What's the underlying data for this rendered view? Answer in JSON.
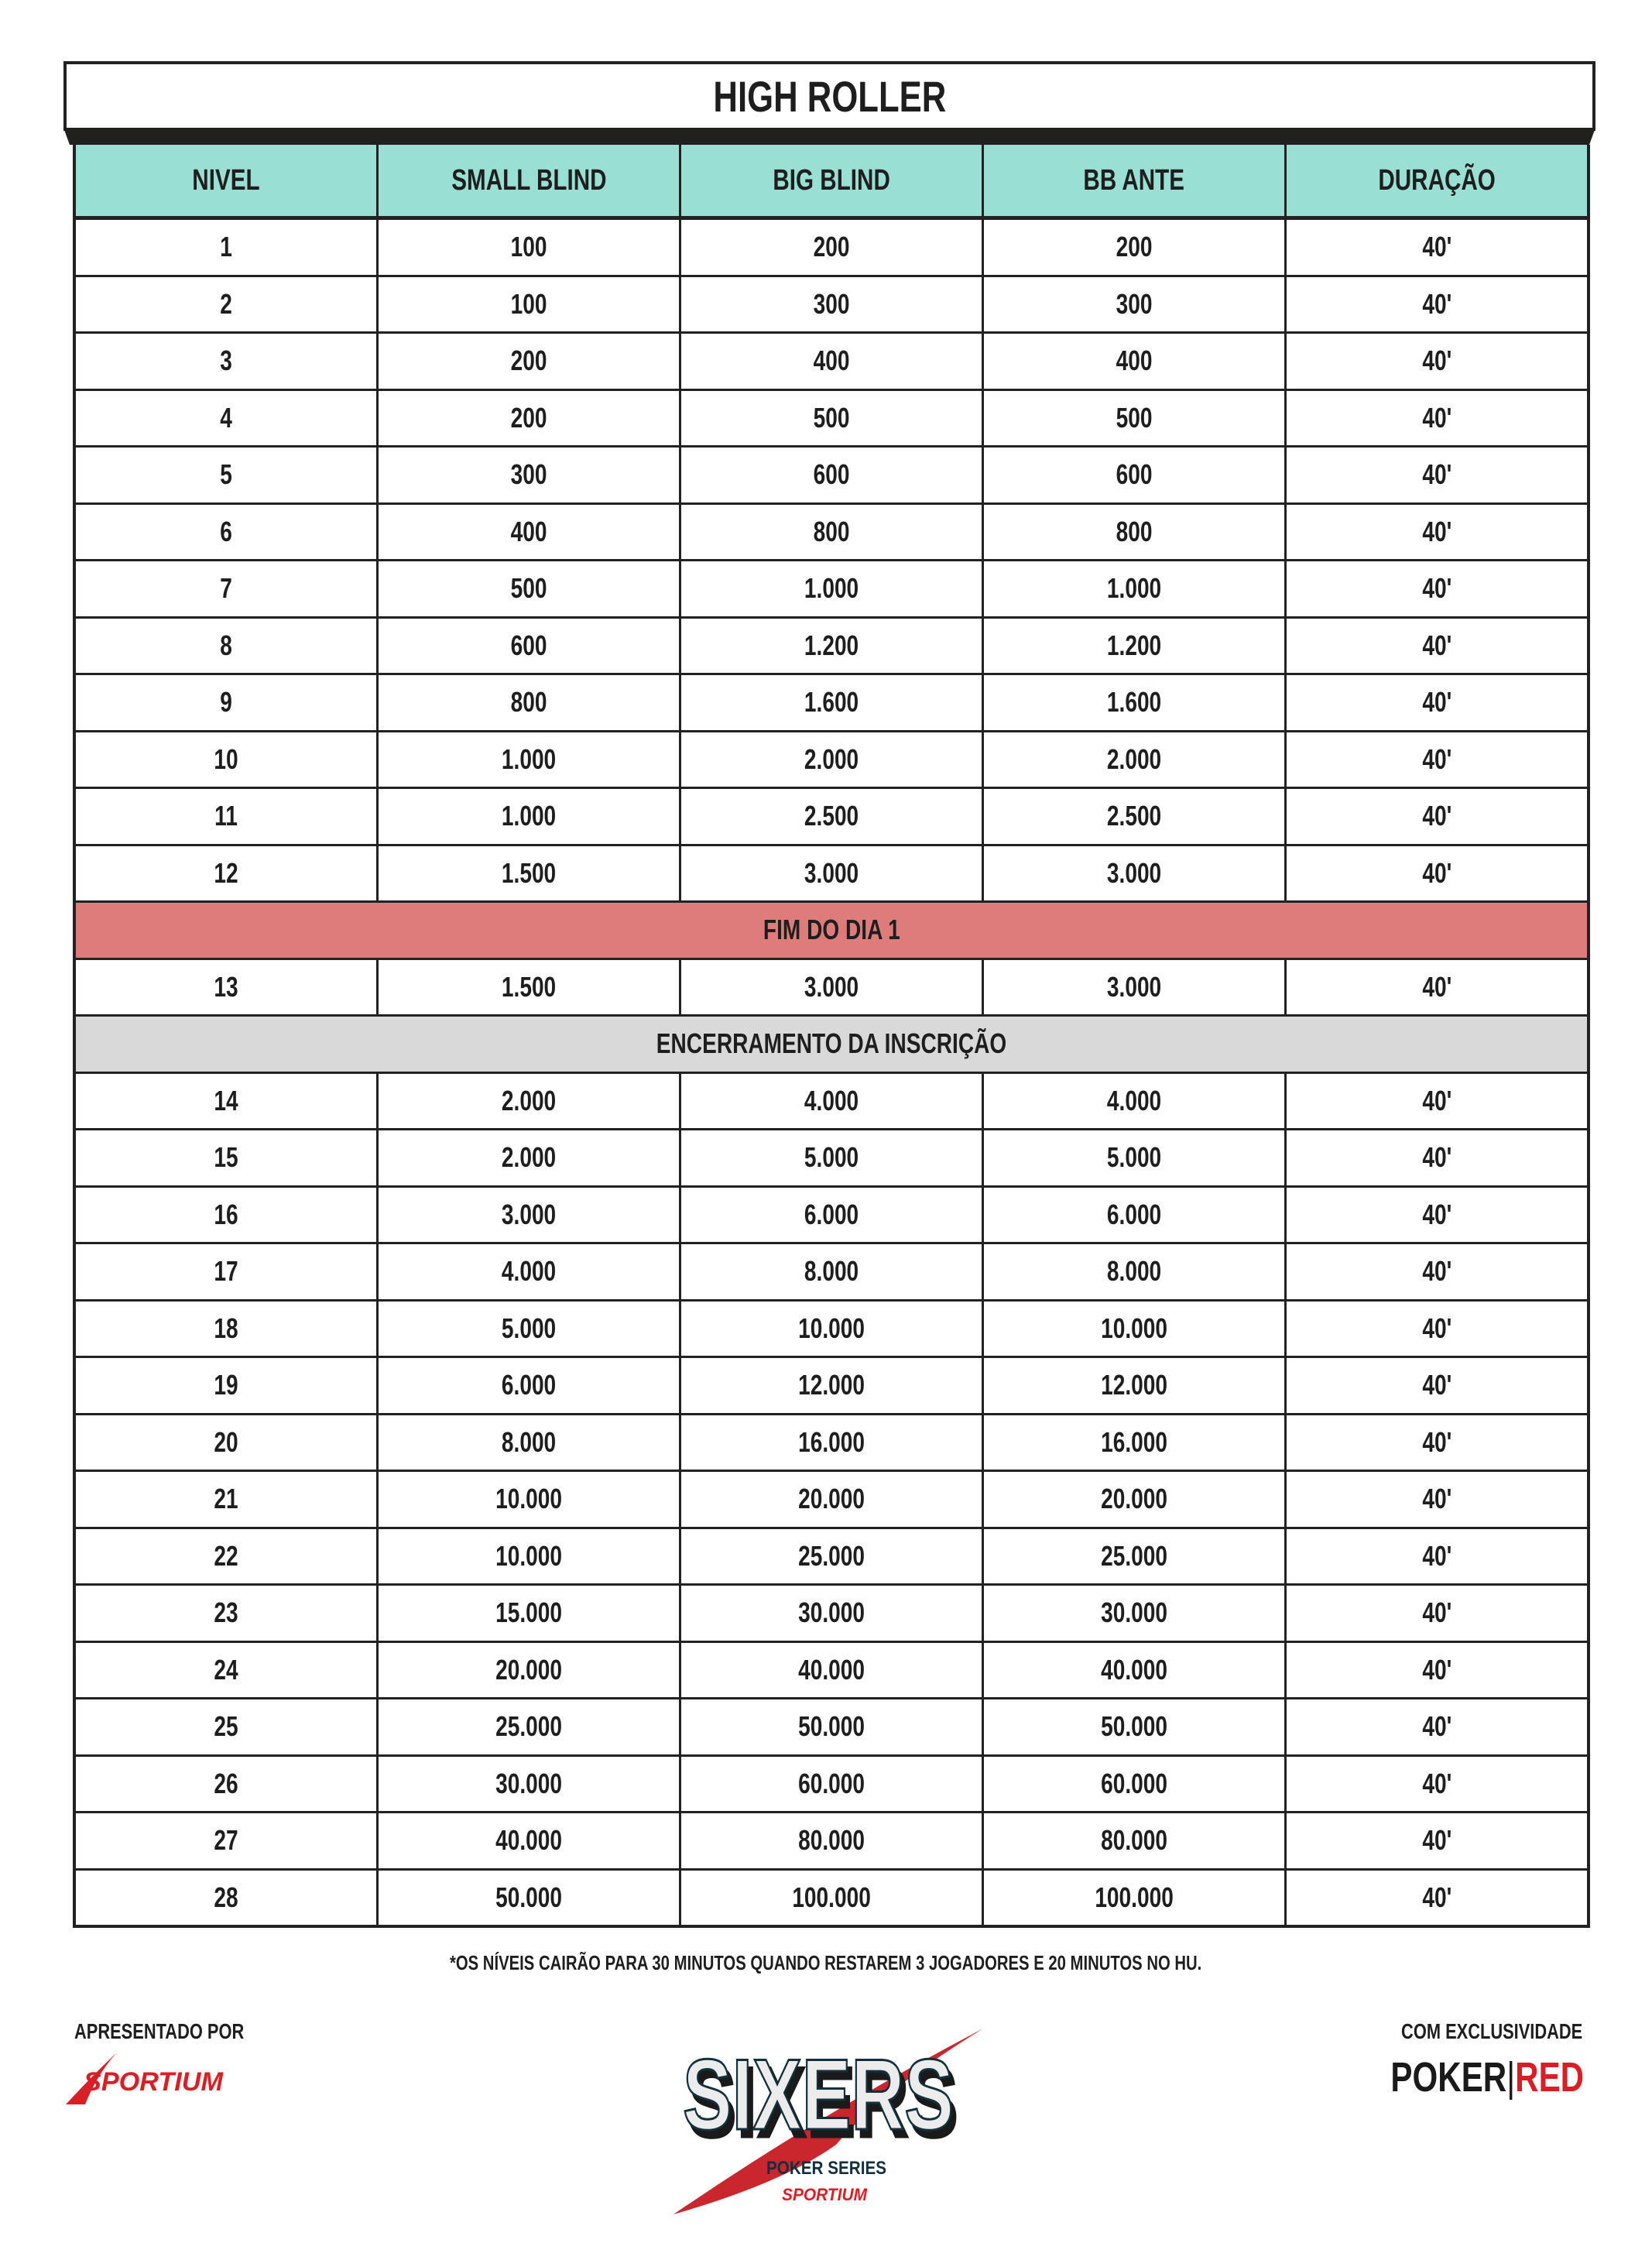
{
  "title": "HIGH ROLLER",
  "columns": [
    "NIVEL",
    "SMALL BLIND",
    "BIG BLIND",
    "BB ANTE",
    "DURAÇÃO"
  ],
  "rows": [
    {
      "type": "level",
      "cells": [
        "1",
        "100",
        "200",
        "200",
        "40'"
      ]
    },
    {
      "type": "level",
      "cells": [
        "2",
        "100",
        "300",
        "300",
        "40'"
      ]
    },
    {
      "type": "level",
      "cells": [
        "3",
        "200",
        "400",
        "400",
        "40'"
      ]
    },
    {
      "type": "level",
      "cells": [
        "4",
        "200",
        "500",
        "500",
        "40'"
      ]
    },
    {
      "type": "level",
      "cells": [
        "5",
        "300",
        "600",
        "600",
        "40'"
      ]
    },
    {
      "type": "level",
      "cells": [
        "6",
        "400",
        "800",
        "800",
        "40'"
      ]
    },
    {
      "type": "level",
      "cells": [
        "7",
        "500",
        "1.000",
        "1.000",
        "40'"
      ]
    },
    {
      "type": "level",
      "cells": [
        "8",
        "600",
        "1.200",
        "1.200",
        "40'"
      ]
    },
    {
      "type": "level",
      "cells": [
        "9",
        "800",
        "1.600",
        "1.600",
        "40'"
      ]
    },
    {
      "type": "level",
      "cells": [
        "10",
        "1.000",
        "2.000",
        "2.000",
        "40'"
      ]
    },
    {
      "type": "level",
      "cells": [
        "11",
        "1.000",
        "2.500",
        "2.500",
        "40'"
      ]
    },
    {
      "type": "level",
      "cells": [
        "12",
        "1.500",
        "3.000",
        "3.000",
        "40'"
      ]
    },
    {
      "type": "band",
      "style": "red",
      "label": "FIM DO DIA 1"
    },
    {
      "type": "level",
      "cells": [
        "13",
        "1.500",
        "3.000",
        "3.000",
        "40'"
      ]
    },
    {
      "type": "band",
      "style": "gray",
      "label": "ENCERRAMENTO DA INSCRIÇÃO"
    },
    {
      "type": "level",
      "cells": [
        "14",
        "2.000",
        "4.000",
        "4.000",
        "40'"
      ]
    },
    {
      "type": "level",
      "cells": [
        "15",
        "2.000",
        "5.000",
        "5.000",
        "40'"
      ]
    },
    {
      "type": "level",
      "cells": [
        "16",
        "3.000",
        "6.000",
        "6.000",
        "40'"
      ]
    },
    {
      "type": "level",
      "cells": [
        "17",
        "4.000",
        "8.000",
        "8.000",
        "40'"
      ]
    },
    {
      "type": "level",
      "cells": [
        "18",
        "5.000",
        "10.000",
        "10.000",
        "40'"
      ]
    },
    {
      "type": "level",
      "cells": [
        "19",
        "6.000",
        "12.000",
        "12.000",
        "40'"
      ]
    },
    {
      "type": "level",
      "cells": [
        "20",
        "8.000",
        "16.000",
        "16.000",
        "40'"
      ]
    },
    {
      "type": "level",
      "cells": [
        "21",
        "10.000",
        "20.000",
        "20.000",
        "40'"
      ]
    },
    {
      "type": "level",
      "cells": [
        "22",
        "10.000",
        "25.000",
        "25.000",
        "40'"
      ]
    },
    {
      "type": "level",
      "cells": [
        "23",
        "15.000",
        "30.000",
        "30.000",
        "40'"
      ]
    },
    {
      "type": "level",
      "cells": [
        "24",
        "20.000",
        "40.000",
        "40.000",
        "40'"
      ]
    },
    {
      "type": "level",
      "cells": [
        "25",
        "25.000",
        "50.000",
        "50.000",
        "40'"
      ]
    },
    {
      "type": "level",
      "cells": [
        "26",
        "30.000",
        "60.000",
        "60.000",
        "40'"
      ]
    },
    {
      "type": "level",
      "cells": [
        "27",
        "40.000",
        "80.000",
        "80.000",
        "40'"
      ]
    },
    {
      "type": "level",
      "cells": [
        "28",
        "50.000",
        "100.000",
        "100.000",
        "40'"
      ]
    }
  ],
  "footnote": "*OS NÍVEIS CAIRÃO PARA 30 MINUTOS QUANDO RESTAREM 3 JOGADORES E 20 MINUTOS NO HU.",
  "footer": {
    "presented_by": "APRESENTADO POR",
    "exclusive": "COM EXCLUSIVIDADE",
    "sportium_logo_text": "SPORTIUM",
    "pokerred_logo": {
      "poker": "POKER",
      "red": "RED"
    },
    "sixers_logo": {
      "main": "SIXERS",
      "sub": "POKER SERIES",
      "sponsor": "SPORTIUM"
    }
  },
  "colors": {
    "header_bg": "#9adfd4",
    "end_day_band": "#de7c7c",
    "registration_band": "#d9d9d9",
    "brand_red": "#d81f26",
    "border": "#222222"
  }
}
